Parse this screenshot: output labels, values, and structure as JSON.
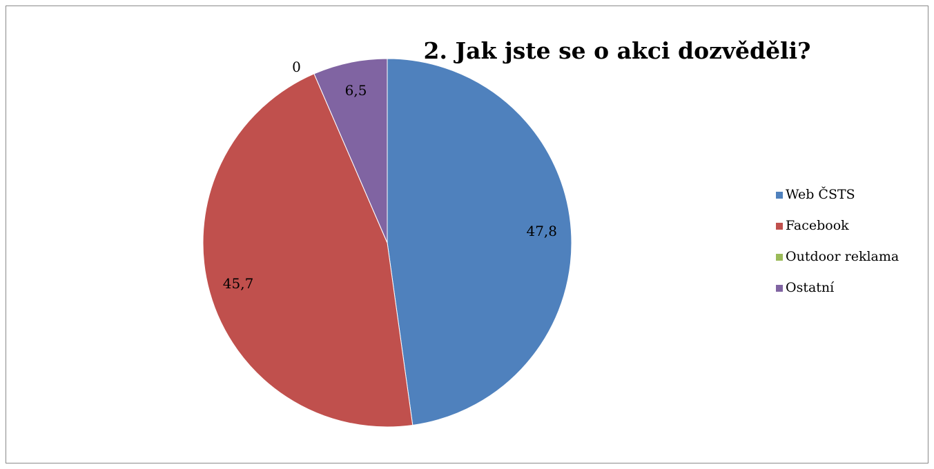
{
  "chart_data": {
    "type": "pie",
    "title": "2. Jak jste se o akci dozvěděli?",
    "categories": [
      "Web ČSTS",
      "Facebook",
      "Outdoor reklama",
      "Ostatní"
    ],
    "values": [
      47.8,
      45.7,
      0,
      6.5
    ],
    "value_labels": [
      "47,8",
      "45,7",
      "0",
      "6,5"
    ],
    "colors": [
      "#4f81bd",
      "#c0504d",
      "#9bbb59",
      "#8064a2"
    ],
    "legend": "right"
  }
}
